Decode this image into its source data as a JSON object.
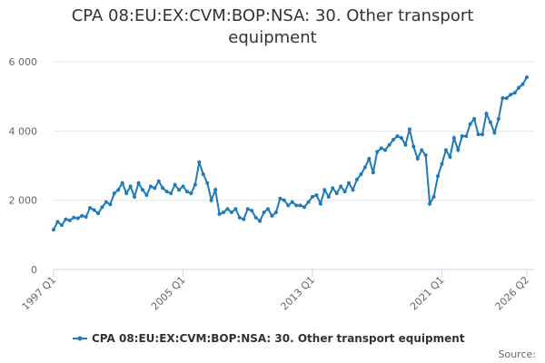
{
  "chart_data": {
    "type": "line",
    "title": "CPA 08:EU:EX:CVM:BOP:NSA: 30. Other transport equipment",
    "categories": [
      "1997 Q1",
      null,
      null,
      null,
      null,
      null,
      null,
      null,
      null,
      null,
      null,
      null,
      null,
      null,
      null,
      null,
      null,
      null,
      null,
      null,
      null,
      null,
      null,
      null,
      null,
      null,
      null,
      null,
      null,
      null,
      null,
      null,
      "2005 Q1",
      null,
      null,
      null,
      null,
      null,
      null,
      null,
      null,
      null,
      null,
      null,
      null,
      null,
      null,
      null,
      null,
      null,
      null,
      null,
      null,
      null,
      null,
      null,
      null,
      null,
      null,
      null,
      null,
      null,
      null,
      null,
      "2013 Q1",
      null,
      null,
      null,
      null,
      null,
      null,
      null,
      null,
      null,
      null,
      null,
      null,
      null,
      null,
      null,
      null,
      null,
      null,
      null,
      null,
      null,
      null,
      null,
      null,
      null,
      null,
      null,
      null,
      null,
      null,
      null,
      "2021 Q1",
      null,
      null,
      null,
      null,
      null,
      null,
      null,
      null,
      null,
      null,
      null,
      null,
      null,
      null,
      null,
      null,
      null,
      null,
      null,
      null,
      "2026 Q2"
    ],
    "series": [
      {
        "name": "CPA 08:EU:EX:CVM:BOP:NSA: 30. Other transport equipment",
        "color": "#1f7bb6",
        "values": [
          1150,
          1380,
          1280,
          1450,
          1420,
          1500,
          1480,
          1550,
          1520,
          1780,
          1720,
          1620,
          1800,
          1950,
          1880,
          2200,
          2300,
          2500,
          2200,
          2400,
          2100,
          2500,
          2300,
          2150,
          2400,
          2350,
          2550,
          2350,
          2250,
          2200,
          2450,
          2300,
          2400,
          2250,
          2200,
          2450,
          3100,
          2750,
          2500,
          2000,
          2300,
          1600,
          1650,
          1750,
          1650,
          1750,
          1500,
          1450,
          1750,
          1700,
          1500,
          1400,
          1650,
          1750,
          1550,
          1650,
          2050,
          2000,
          1850,
          1950,
          1850,
          1850,
          1800,
          1950,
          2100,
          2150,
          1900,
          2300,
          2100,
          2350,
          2200,
          2400,
          2250,
          2500,
          2300,
          2600,
          2750,
          2950,
          3200,
          2800,
          3400,
          3500,
          3450,
          3600,
          3750,
          3850,
          3800,
          3600,
          4050,
          3550,
          3200,
          3450,
          3300,
          1900,
          2100,
          2700,
          3050,
          3450,
          3250,
          3800,
          3450,
          3850,
          3850,
          4200,
          4350,
          3900,
          3900,
          4500,
          4250,
          3950,
          4350,
          4950,
          4950,
          5050,
          5100,
          5250,
          5350,
          5550
        ]
      }
    ],
    "ylim": [
      0,
      6000
    ],
    "yticks": [
      0,
      {
        "value": 2000,
        "label": "2 000"
      },
      {
        "value": 4000,
        "label": "4 000"
      },
      {
        "value": 6000,
        "label": "6 000"
      }
    ],
    "grid": true,
    "source": "Source:"
  }
}
